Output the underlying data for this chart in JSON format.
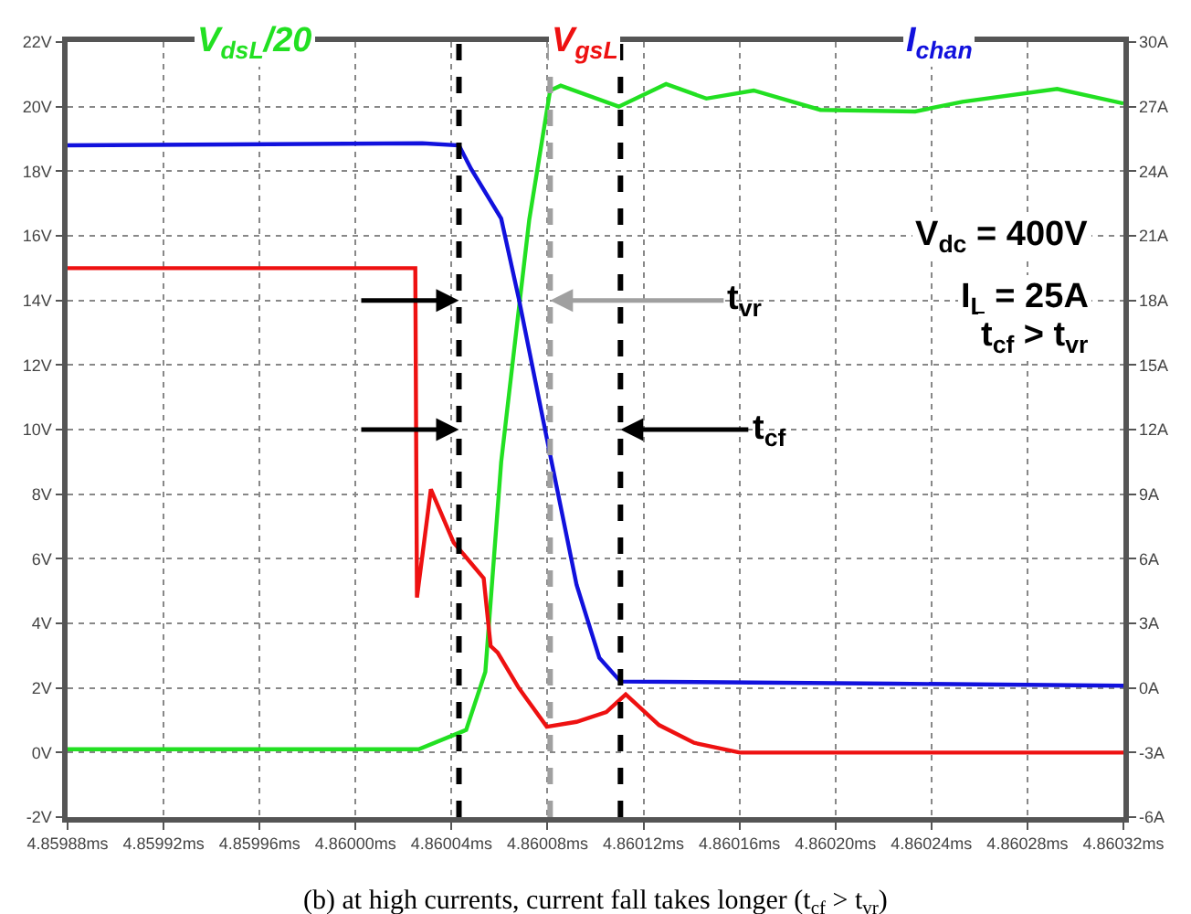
{
  "chart_data": {
    "type": "line",
    "series": [
      {
        "name": "V$_{dsL}$/20",
        "color": "#22e022",
        "x": [
          4.85988,
          4.8600263,
          4.8600461,
          4.8600541,
          4.8600607,
          4.860068,
          4.8600724,
          4.8600811,
          4.8600855,
          4.8601097,
          4.8601294,
          4.8601462,
          4.8601659,
          4.8601937,
          4.8602332,
          4.8602529,
          4.8602924,
          4.86032
        ],
        "values": [
          0.1,
          0.1,
          0.7,
          2.5,
          9,
          13.7,
          16.5,
          20.5,
          20.65,
          20.0,
          20.7,
          20.25,
          20.5,
          19.9,
          19.85,
          20.15,
          20.55,
          20.1
        ]
      },
      {
        "name": "V$_{gsL}$",
        "color": "#ee1111",
        "x": [
          4.85988,
          4.8600249,
          4.8600256,
          4.8600314,
          4.8600409,
          4.8600534,
          4.8600563,
          4.8600592,
          4.860068,
          4.8600797,
          4.8600921,
          4.8601045,
          4.8601126,
          4.8601265,
          4.8601411,
          4.8601601,
          4.86032
        ],
        "values": [
          15,
          15,
          4.8,
          8.15,
          6.5,
          5.4,
          3.3,
          3.1,
          2.0,
          0.8,
          0.95,
          1.25,
          1.8,
          0.85,
          0.3,
          0,
          0
        ]
      },
      {
        "name": "I$_{chan}$",
        "color": "#1111dd",
        "axis": "y2",
        "x": [
          4.85988,
          4.8600278,
          4.8600431,
          4.8600482,
          4.8600607,
          4.860068,
          4.8600797,
          4.8600921,
          4.8601016,
          4.8601104,
          4.8602237,
          4.86032
        ],
        "values": [
          25.2,
          25.3,
          25.2,
          24.1,
          21.8,
          18.1,
          11.6,
          4.8,
          1.4,
          0.3,
          0.2,
          0.1
        ]
      }
    ],
    "xlim": [
      4.85988,
      4.86032
    ],
    "xticks": [
      {
        "value": 4.85988,
        "label": "4.85988ms"
      },
      {
        "value": 4.85992,
        "label": "4.85992ms"
      },
      {
        "value": 4.85996,
        "label": "4.85996ms"
      },
      {
        "value": 4.86,
        "label": "4.86000ms"
      },
      {
        "value": 4.86004,
        "label": "4.86004ms"
      },
      {
        "value": 4.86008,
        "label": "4.86008ms"
      },
      {
        "value": 4.86012,
        "label": "4.86012ms"
      },
      {
        "value": 4.86016,
        "label": "4.86016ms"
      },
      {
        "value": 4.8602,
        "label": "4.86020ms"
      },
      {
        "value": 4.86024,
        "label": "4.86024ms"
      },
      {
        "value": 4.86028,
        "label": "4.86028ms"
      },
      {
        "value": 4.86032,
        "label": "4.86032ms"
      }
    ],
    "ylim": [
      -2,
      22
    ],
    "yticks": [
      {
        "value": -2,
        "label": "-2V"
      },
      {
        "value": 0,
        "label": "0V"
      },
      {
        "value": 2,
        "label": "2V"
      },
      {
        "value": 4,
        "label": "4V"
      },
      {
        "value": 6,
        "label": "6V"
      },
      {
        "value": 8,
        "label": "8V"
      },
      {
        "value": 10,
        "label": "10V"
      },
      {
        "value": 12,
        "label": "12V"
      },
      {
        "value": 14,
        "label": "14V"
      },
      {
        "value": 16,
        "label": "16V"
      },
      {
        "value": 18,
        "label": "18V"
      },
      {
        "value": 20,
        "label": "20V"
      },
      {
        "value": 22,
        "label": "22V"
      }
    ],
    "y2lim": [
      -6,
      30
    ],
    "y2ticks": [
      {
        "value": -6,
        "label": "-6A"
      },
      {
        "value": -3,
        "label": "-3A"
      },
      {
        "value": 0,
        "label": "0A"
      },
      {
        "value": 3,
        "label": "3A"
      },
      {
        "value": 6,
        "label": "6A"
      },
      {
        "value": 9,
        "label": "9A"
      },
      {
        "value": 12,
        "label": "12A"
      },
      {
        "value": 15,
        "label": "15A"
      },
      {
        "value": 18,
        "label": "18A"
      },
      {
        "value": 21,
        "label": "21A"
      },
      {
        "value": 24,
        "label": "24A"
      },
      {
        "value": 27,
        "label": "27A"
      },
      {
        "value": 30,
        "label": "30A"
      }
    ],
    "grid": true,
    "legend": false,
    "marker": "none",
    "line_style": "solid",
    "ref_lines": [
      {
        "axis": "x",
        "value": 4.8600431,
        "color": "#000000",
        "line_style": "dashed"
      },
      {
        "axis": "x",
        "value": 4.8600811,
        "color": "#a0a0a0",
        "line_style": "dashed"
      },
      {
        "axis": "x",
        "value": 4.8601104,
        "color": "#000000",
        "line_style": "dashed"
      }
    ],
    "annotations": [
      {
        "text": "t$_{vr}$",
        "x": 4.8600811,
        "y": 14
      },
      {
        "text": "t$_{cf}$",
        "x": 4.8601104,
        "y": 10
      },
      "V$_{dc}$ = 400V",
      "I$_{L}$ = 25A",
      "t$_{cf}$ > t$_{vr}$",
      "(b) at high currents, current fall takes longer (t$_{cf}$ > t$_{vr}$)"
    ]
  }
}
